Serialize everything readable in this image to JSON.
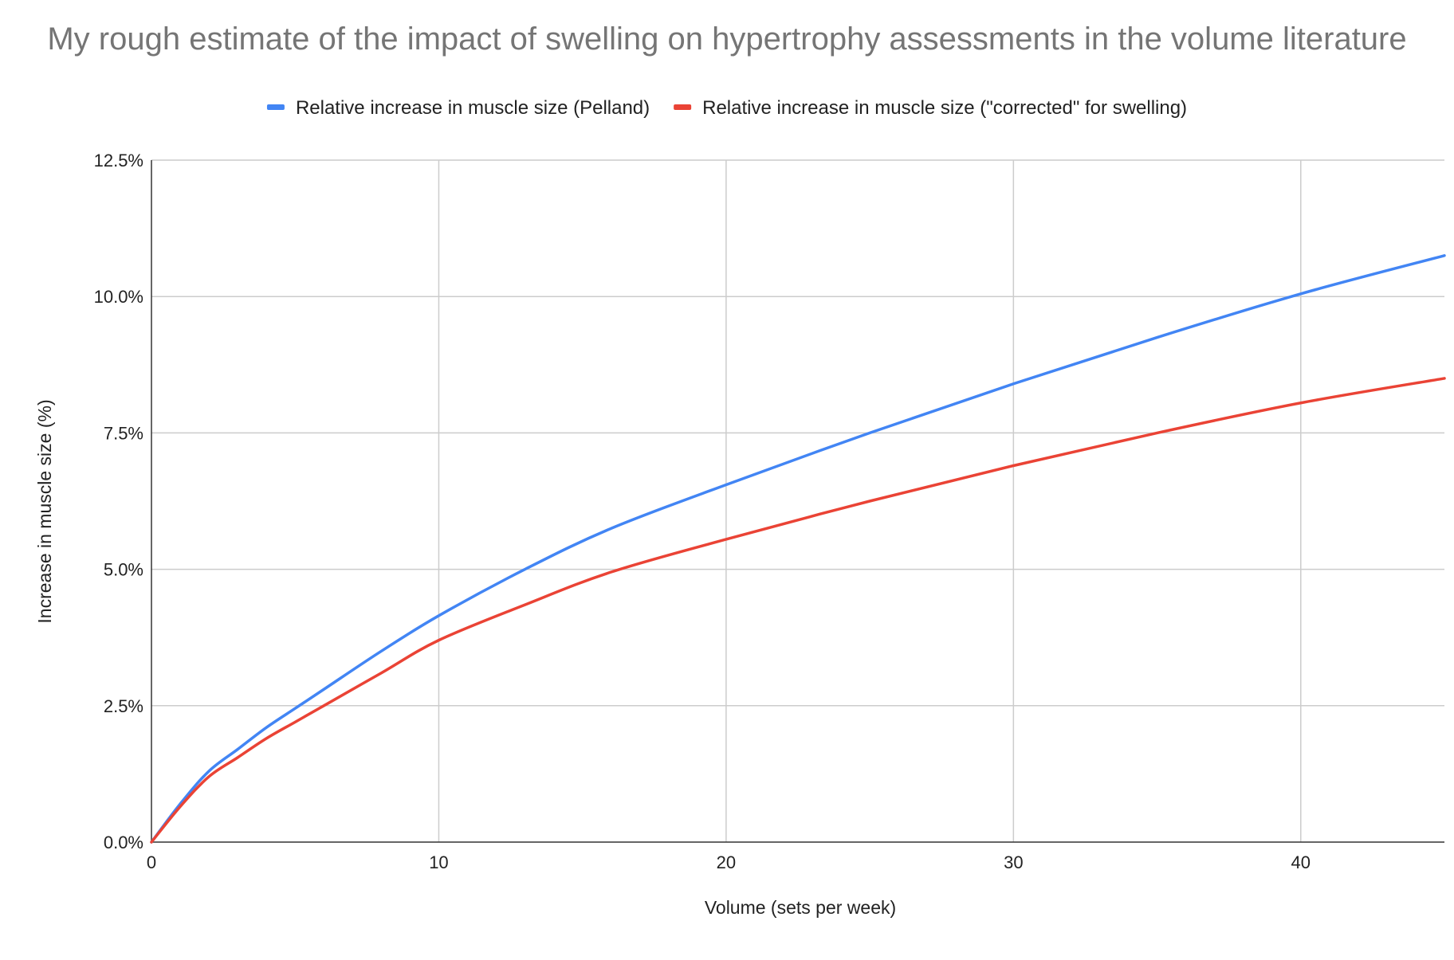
{
  "chart_data": {
    "type": "line",
    "title": "My rough estimate of the impact of swelling on hypertrophy assessments in the volume literature",
    "xlabel": "Volume (sets per week)",
    "ylabel": "Increase in muscle size (%)",
    "xlim": [
      0,
      45
    ],
    "ylim": [
      0,
      12.5
    ],
    "xticks": [
      0,
      10,
      20,
      30,
      40
    ],
    "xtick_labels": [
      "0",
      "10",
      "20",
      "30",
      "40"
    ],
    "yticks": [
      0,
      2.5,
      5,
      7.5,
      10,
      12.5
    ],
    "ytick_labels": [
      "0.0%",
      "2.5%",
      "5.0%",
      "7.5%",
      "10.0%",
      "12.5%"
    ],
    "grid": true,
    "legend_position": "top",
    "series": [
      {
        "name": "Relative increase in muscle size (Pelland)",
        "color": "#4285f4",
        "x": [
          0,
          1,
          2,
          3,
          4,
          5,
          6,
          8,
          10,
          13,
          16,
          20,
          25,
          30,
          35,
          40,
          45
        ],
        "y": [
          0,
          0.7,
          1.3,
          1.7,
          2.1,
          2.45,
          2.8,
          3.5,
          4.15,
          5.0,
          5.75,
          6.55,
          7.5,
          8.4,
          9.25,
          10.05,
          10.75
        ]
      },
      {
        "name": "Relative increase in muscle size (\"corrected\" for swelling)",
        "color": "#ea4335",
        "x": [
          0,
          1,
          2,
          3,
          4,
          5,
          6,
          8,
          10,
          13,
          16,
          20,
          25,
          30,
          35,
          40,
          45
        ],
        "y": [
          0,
          0.65,
          1.2,
          1.55,
          1.9,
          2.2,
          2.5,
          3.1,
          3.7,
          4.35,
          4.95,
          5.55,
          6.25,
          6.9,
          7.5,
          8.05,
          8.5
        ]
      }
    ]
  }
}
